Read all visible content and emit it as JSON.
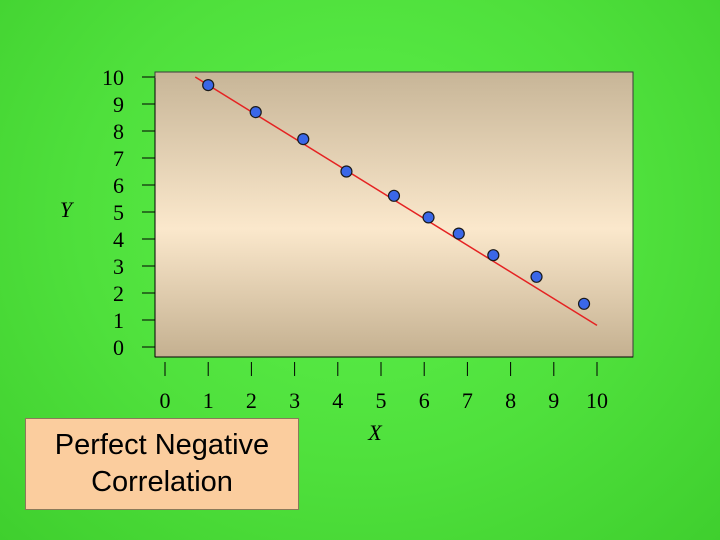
{
  "colors": {
    "background": "#4fe03c",
    "plot_gradient_top": "#c9b89d",
    "plot_gradient_mid": "#fbe8cc",
    "line": "#e52222",
    "point_fill": "#3a67e8",
    "caption_fill": "#fbcd9e"
  },
  "caption": {
    "line1": "Perfect Negative",
    "line2": "Correlation"
  },
  "chart_data": {
    "type": "scatter",
    "title": "",
    "xlabel": "X",
    "ylabel": "Y",
    "x_ticks": [
      "0",
      "1",
      "2",
      "3",
      "4",
      "5",
      "6",
      "7",
      "8",
      "9",
      "10"
    ],
    "y_ticks": [
      "10",
      "9",
      "8",
      "7",
      "6",
      "5",
      "4",
      "3",
      "2",
      "1",
      "0"
    ],
    "xlim": [
      0,
      10
    ],
    "ylim": [
      0,
      10
    ],
    "grid": false,
    "trend_line": {
      "x": [
        0.7,
        10.0
      ],
      "y": [
        10.0,
        0.8
      ]
    },
    "series": [
      {
        "x": [
          1.0,
          2.1,
          3.2,
          4.2,
          5.3,
          6.1,
          6.8,
          7.6,
          8.6,
          9.7
        ],
        "y": [
          9.7,
          8.7,
          7.7,
          6.5,
          5.6,
          4.8,
          4.2,
          3.4,
          2.6,
          1.6
        ]
      }
    ]
  }
}
